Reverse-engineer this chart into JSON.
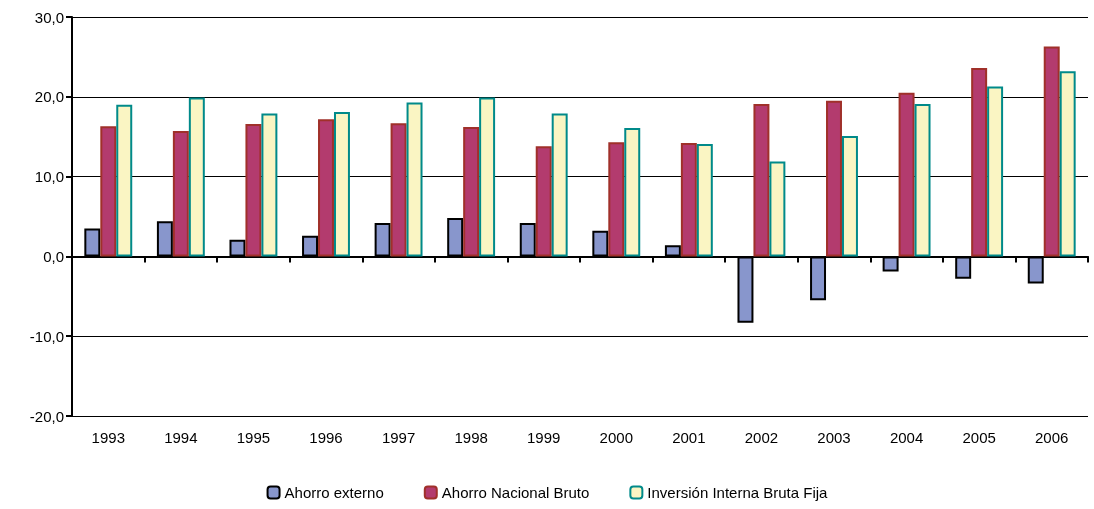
{
  "chart_data": {
    "type": "bar",
    "categories": [
      "1993",
      "1994",
      "1995",
      "1996",
      "1997",
      "1998",
      "1999",
      "2000",
      "2001",
      "2002",
      "2003",
      "2004",
      "2005",
      "2006"
    ],
    "series": [
      {
        "name": "Ahorro externo",
        "color": "#8896cc",
        "values": [
          3.5,
          4.4,
          2.1,
          2.6,
          4.2,
          4.8,
          4.2,
          3.2,
          1.4,
          -8.3,
          -5.5,
          -1.9,
          -2.8,
          -3.4
        ]
      },
      {
        "name": "Ahorro Nacional Bruto",
        "color": "#b33b6e",
        "values": [
          16.3,
          15.7,
          16.6,
          17.2,
          16.7,
          16.2,
          13.8,
          14.3,
          14.2,
          19.1,
          19.5,
          20.5,
          23.6,
          26.3
        ]
      },
      {
        "name": "Inversión Interna Bruta Fija",
        "color": "#faf5c3",
        "values": [
          19.0,
          19.9,
          17.9,
          18.1,
          19.3,
          19.9,
          17.9,
          16.1,
          14.1,
          11.9,
          15.1,
          19.1,
          21.3,
          23.2
        ]
      }
    ],
    "ylim": [
      -20,
      30
    ],
    "yticks": [
      {
        "value": -20,
        "label": "-20,0"
      },
      {
        "value": -10,
        "label": "-10,0"
      },
      {
        "value": 0,
        "label": "0,0"
      },
      {
        "value": 10,
        "label": "10,0"
      },
      {
        "value": 20,
        "label": "20,0"
      },
      {
        "value": 30,
        "label": "30,0"
      }
    ],
    "grid": "y",
    "legend": "bottom"
  }
}
